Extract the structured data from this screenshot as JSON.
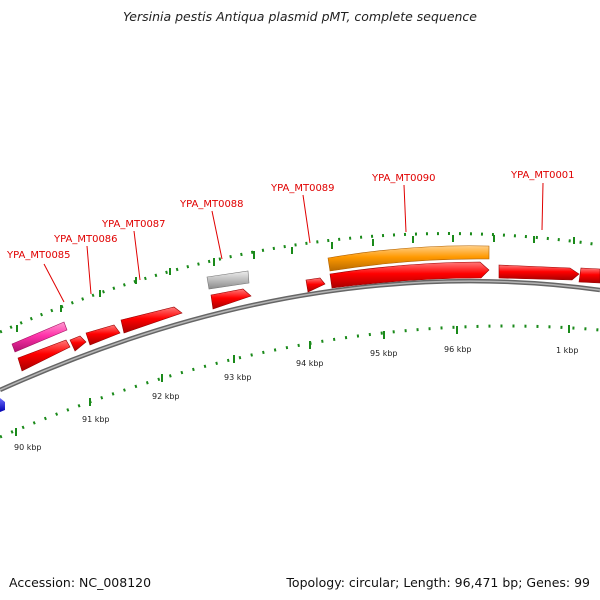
{
  "title": "Yersinia pestis Antiqua plasmid pMT, complete sequence",
  "accession_text": "Accession: NC_008120",
  "summary_text": "Topology: circular; Length: 96,471 bp; Genes: 99",
  "colors": {
    "backbone": "#8c8c8c",
    "tick_green": "#1a8a1a",
    "label_red": "#e00000",
    "cds_red": "#ff0000",
    "orange": "#ff9900",
    "pink": "#ff33aa",
    "gray": "#bbbbbb",
    "blue": "#0000ff"
  },
  "gene_labels": [
    "YPA_MT0085",
    "YPA_MT0086",
    "YPA_MT0087",
    "YPA_MT0088",
    "YPA_MT0089",
    "YPA_MT0090",
    "YPA_MT0001"
  ],
  "scale_labels": [
    "90 kbp",
    "91 kbp",
    "92 kbp",
    "93 kbp",
    "94 kbp",
    "95 kbp",
    "96 kbp",
    "1 kbp"
  ]
}
